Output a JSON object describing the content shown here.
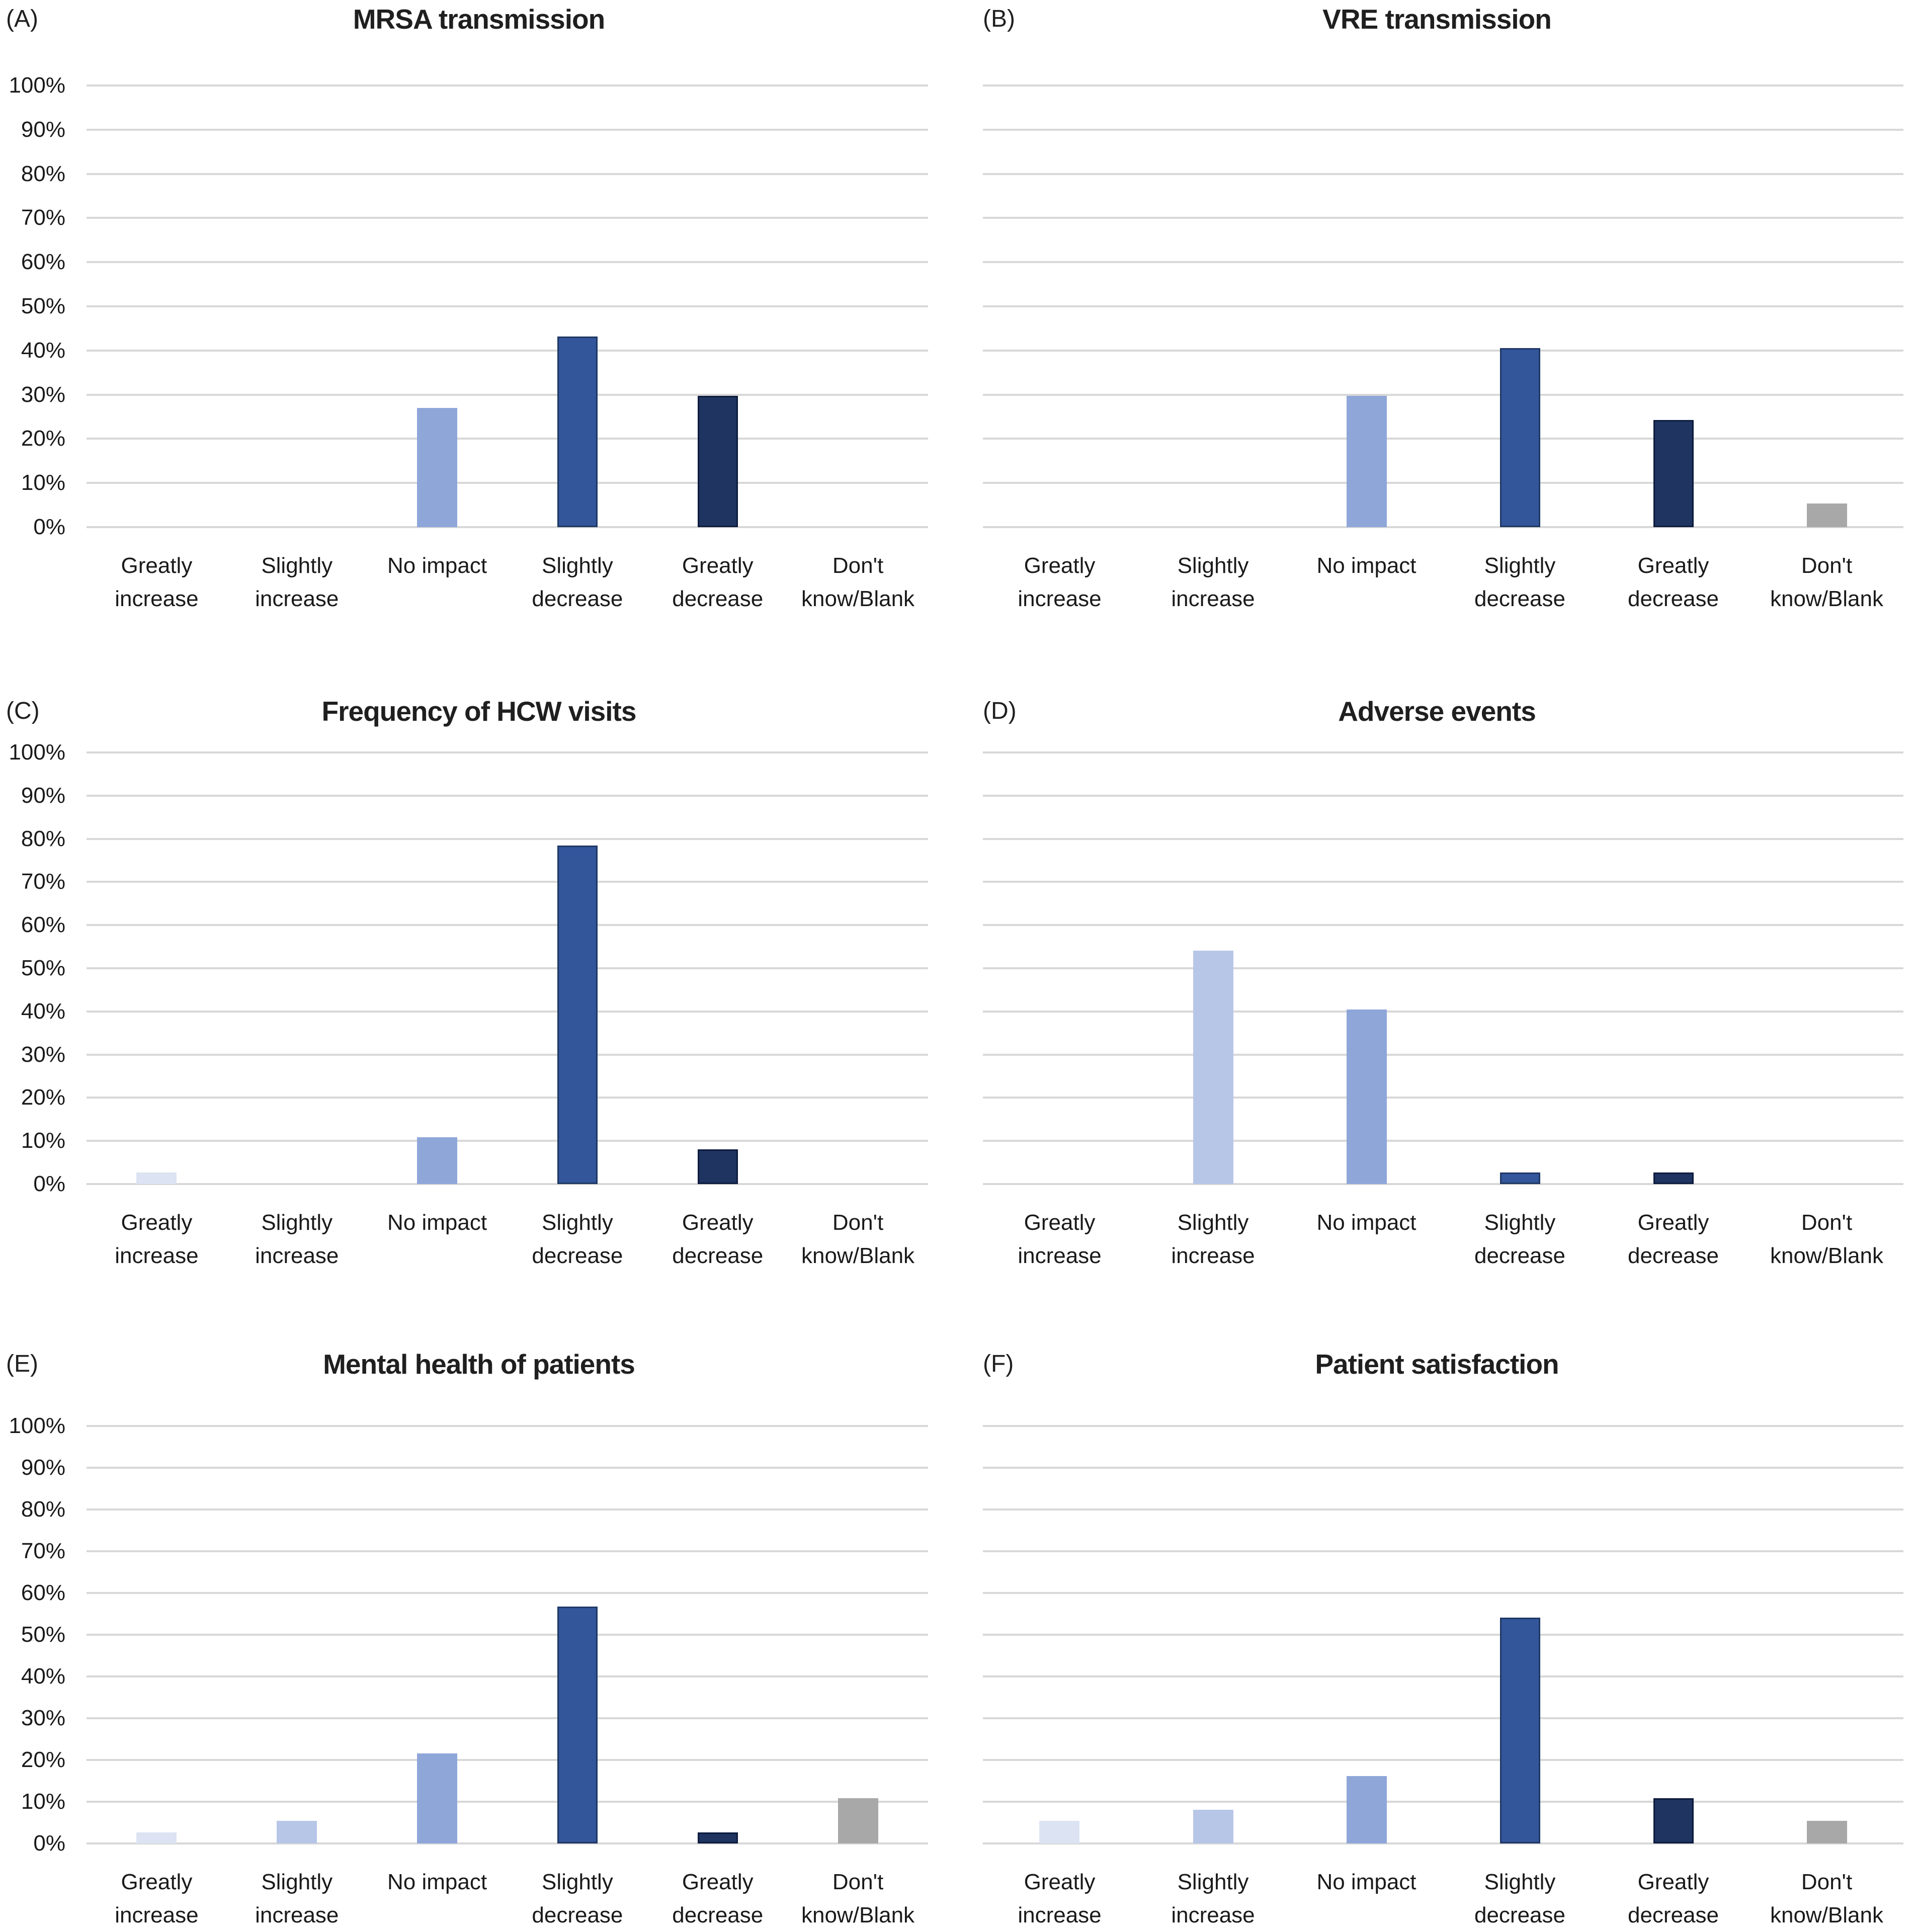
{
  "shared": {
    "y_tick_labels_bottom_up": [
      "0%",
      "10%",
      "20%",
      "30%",
      "40%",
      "50%",
      "60%",
      "70%",
      "80%",
      "90%",
      "100%"
    ],
    "categories": [
      "Greatly increase",
      "Slightly increase",
      "No impact",
      "Slightly decrease",
      "Greatly decrease",
      "Don't know/Blank"
    ],
    "category_lines": [
      [
        "Greatly",
        "increase"
      ],
      [
        "Slightly",
        "increase"
      ],
      [
        "No impact"
      ],
      [
        "Slightly",
        "decrease"
      ],
      [
        "Greatly",
        "decrease"
      ],
      [
        "Don't",
        "know/Blank"
      ]
    ],
    "colors": {
      "greatly_increase": "#DCE3F3",
      "slightly_increase": "#B7C6E7",
      "no_impact": "#8FA6D9",
      "slightly_decrease": "#33569B",
      "slightly_decrease_border": "#1F3864",
      "greatly_decrease": "#1F3460",
      "greatly_decrease_border": "#0D1C3E",
      "dont_know_blank": "#A9A8A8",
      "gridline": "#D8D8D8",
      "text": "#1A1A1A",
      "title_text": "#1F1F1F",
      "background": "#FFFFFF"
    }
  },
  "chart_data": [
    {
      "type": "bar",
      "panel_letter": "(A)",
      "title": "MRSA transmission",
      "categories": [
        "Greatly increase",
        "Slightly increase",
        "No impact",
        "Slightly decrease",
        "Greatly decrease",
        "Don't know/Blank"
      ],
      "values": [
        0,
        0,
        27.0,
        43.2,
        29.7,
        0
      ],
      "xlabel": "",
      "ylabel": "",
      "ylim": [
        0,
        100
      ],
      "y_tick_step": 10,
      "grid": true,
      "legend": "none",
      "show_y_tick_labels": true
    },
    {
      "type": "bar",
      "panel_letter": "(B)",
      "title": "VRE transmission",
      "categories": [
        "Greatly increase",
        "Slightly increase",
        "No impact",
        "Slightly decrease",
        "Greatly decrease",
        "Don't know/Blank"
      ],
      "values": [
        0,
        0,
        29.7,
        40.5,
        24.3,
        5.4
      ],
      "xlabel": "",
      "ylabel": "",
      "ylim": [
        0,
        100
      ],
      "y_tick_step": 10,
      "grid": true,
      "legend": "none",
      "show_y_tick_labels": false
    },
    {
      "type": "bar",
      "panel_letter": "(C)",
      "title": "Frequency of HCW visits",
      "categories": [
        "Greatly increase",
        "Slightly increase",
        "No impact",
        "Slightly decrease",
        "Greatly decrease",
        "Don't know/Blank"
      ],
      "values": [
        2.7,
        0,
        10.8,
        78.4,
        8.1,
        0
      ],
      "xlabel": "",
      "ylabel": "",
      "ylim": [
        0,
        100
      ],
      "y_tick_step": 10,
      "grid": true,
      "legend": "none",
      "show_y_tick_labels": true
    },
    {
      "type": "bar",
      "panel_letter": "(D)",
      "title": "Adverse events",
      "categories": [
        "Greatly increase",
        "Slightly increase",
        "No impact",
        "Slightly decrease",
        "Greatly decrease",
        "Don't know/Blank"
      ],
      "values": [
        0,
        54.1,
        40.5,
        2.7,
        2.7,
        0
      ],
      "xlabel": "",
      "ylabel": "",
      "ylim": [
        0,
        100
      ],
      "y_tick_step": 10,
      "grid": true,
      "legend": "none",
      "show_y_tick_labels": false
    },
    {
      "type": "bar",
      "panel_letter": "(E)",
      "title": "Mental health of patients",
      "categories": [
        "Greatly increase",
        "Slightly increase",
        "No impact",
        "Slightly decrease",
        "Greatly decrease",
        "Don't know/Blank"
      ],
      "values": [
        2.7,
        5.4,
        21.6,
        56.8,
        2.7,
        10.8
      ],
      "xlabel": "",
      "ylabel": "",
      "ylim": [
        0,
        100
      ],
      "y_tick_step": 10,
      "grid": true,
      "legend": "none",
      "show_y_tick_labels": true
    },
    {
      "type": "bar",
      "panel_letter": "(F)",
      "title": "Patient satisfaction",
      "categories": [
        "Greatly increase",
        "Slightly increase",
        "No impact",
        "Slightly decrease",
        "Greatly decrease",
        "Don't know/Blank"
      ],
      "values": [
        5.4,
        8.1,
        16.2,
        54.1,
        10.8,
        5.4
      ],
      "xlabel": "",
      "ylabel": "",
      "ylim": [
        0,
        100
      ],
      "y_tick_step": 10,
      "grid": true,
      "legend": "none",
      "show_y_tick_labels": false
    }
  ]
}
